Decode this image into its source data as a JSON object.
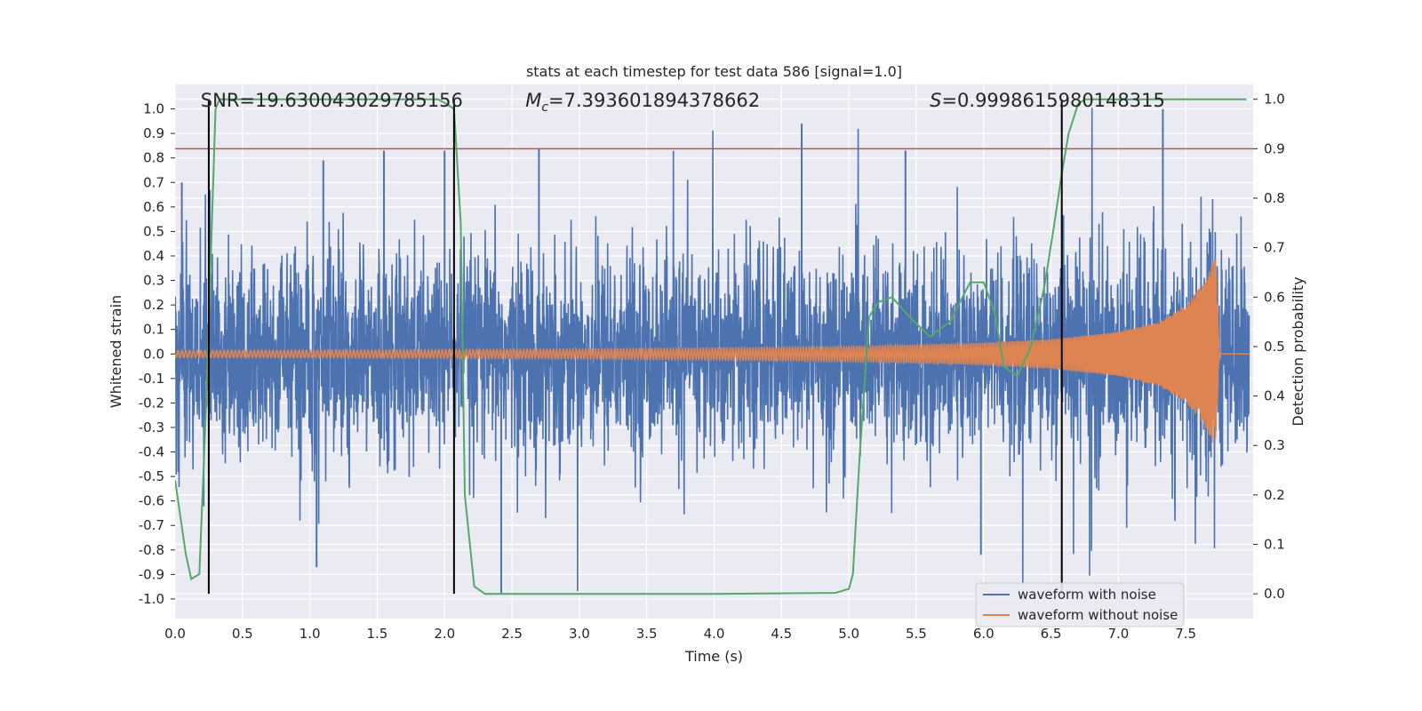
{
  "chart_data": {
    "type": "line",
    "title": "stats at each timestep for test data 586 [signal=1.0]",
    "xlabel": "Time (s)",
    "ylabel": "Whitened strain",
    "y2label": "Detection probability",
    "xlim": [
      0.0,
      8.0
    ],
    "ylim": [
      -1.08,
      1.1
    ],
    "y2lim": [
      -0.05,
      1.03
    ],
    "x_ticks": [
      0.0,
      0.5,
      1.0,
      1.5,
      2.0,
      2.5,
      3.0,
      3.5,
      4.0,
      4.5,
      5.0,
      5.5,
      6.0,
      6.5,
      7.0,
      7.5
    ],
    "y_ticks": [
      -1.0,
      -0.9,
      -0.8,
      -0.7,
      -0.6,
      -0.5,
      -0.4,
      -0.3,
      -0.2,
      -0.1,
      0.0,
      0.1,
      0.2,
      0.3,
      0.4,
      0.5,
      0.6,
      0.7,
      0.8,
      0.9,
      1.0
    ],
    "y2_ticks": [
      0.0,
      0.1,
      0.2,
      0.3,
      0.4,
      0.5,
      0.6,
      0.7,
      0.8,
      0.9,
      1.0
    ],
    "grid": true,
    "legend_position": "bottom-right",
    "annotations": {
      "snr": "SNR=19.630043029785156",
      "mc_symbol": "M",
      "mc_sub": "c",
      "mc_value": "=7.393601894378662",
      "s_symbol": "S",
      "s_value": "=0.9998615980148315"
    },
    "threshold": {
      "y2": 0.9,
      "color": "#c44e52"
    },
    "vertical_lines": [
      0.25,
      2.07,
      6.58
    ],
    "series": [
      {
        "name": "waveform with noise",
        "color": "#4c72b0",
        "description_values": {
          "typical_amplitude_range": [
            -0.45,
            0.45
          ],
          "max": 1.0,
          "min": -0.98,
          "sample_spikes": [
            [
              0.05,
              0.7
            ],
            [
              1.1,
              0.79
            ],
            [
              1.55,
              0.83
            ],
            [
              2.0,
              0.83
            ],
            [
              2.7,
              0.84
            ],
            [
              4.65,
              0.94
            ],
            [
              5.42,
              0.83
            ],
            [
              7.33,
              1.0
            ],
            [
              1.05,
              -0.87
            ],
            [
              2.42,
              -0.98
            ],
            [
              5.98,
              -0.82
            ]
          ]
        }
      },
      {
        "name": "waveform without noise",
        "color": "#dd8452",
        "envelope": {
          "x": [
            0.0,
            1.0,
            2.0,
            3.0,
            4.0,
            5.0,
            6.0,
            6.5,
            7.0,
            7.3,
            7.5,
            7.65,
            7.72,
            7.75
          ],
          "amplitude": [
            0.015,
            0.016,
            0.018,
            0.02,
            0.024,
            0.03,
            0.045,
            0.06,
            0.09,
            0.13,
            0.2,
            0.3,
            0.4,
            0.0
          ]
        }
      },
      {
        "name": "detection probability",
        "color": "#55a868",
        "axis": "right",
        "x": [
          0.0,
          0.08,
          0.12,
          0.18,
          0.23,
          0.3,
          0.33,
          0.4,
          0.5,
          1.0,
          1.5,
          1.95,
          2.02,
          2.07,
          2.12,
          2.15,
          2.22,
          2.3,
          2.5,
          3.0,
          4.0,
          4.9,
          5.0,
          5.03,
          5.08,
          5.15,
          5.22,
          5.32,
          5.45,
          5.6,
          5.75,
          5.9,
          6.0,
          6.08,
          6.15,
          6.25,
          6.35,
          6.45,
          6.52,
          6.58,
          6.63,
          6.7,
          6.75,
          6.8,
          7.0,
          7.5,
          7.95
        ],
        "values": [
          0.23,
          0.08,
          0.03,
          0.04,
          0.38,
          0.98,
          1.0,
          1.0,
          1.0,
          1.0,
          1.0,
          1.0,
          0.99,
          0.98,
          0.75,
          0.2,
          0.015,
          0.0,
          0.0,
          0.0,
          0.0,
          0.002,
          0.01,
          0.04,
          0.28,
          0.56,
          0.59,
          0.6,
          0.56,
          0.52,
          0.55,
          0.63,
          0.63,
          0.57,
          0.46,
          0.44,
          0.5,
          0.62,
          0.74,
          0.85,
          0.93,
          0.99,
          1.0,
          1.0,
          1.0,
          1.0,
          1.0
        ]
      }
    ]
  }
}
